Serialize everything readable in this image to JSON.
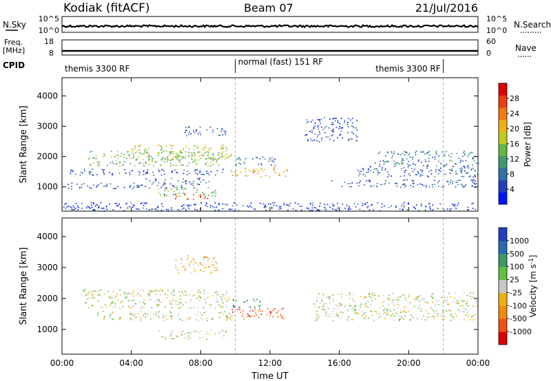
{
  "header": {
    "station": "Kodiak (fitACF)",
    "beam": "Beam 07",
    "date": "21/Jul/2016"
  },
  "top_panels": {
    "nsky_label": "N.Sky",
    "nsky_ticks": [
      "10^5",
      "10^0"
    ],
    "nsearch_label": "N.Search",
    "nsearch_ticks": [
      "10^5",
      "10^0"
    ],
    "freq_label": "Freq.",
    "freq_unit": "[MHz]",
    "freq_ticks": [
      "18",
      "8"
    ],
    "nave_label": "Nave",
    "nave_ticks": [
      "60",
      "0"
    ],
    "cpid_label": "CPID",
    "cpid_segments": [
      {
        "name": "themis 3300 RF",
        "start_h": 0,
        "end_h": 10
      },
      {
        "name": "normal (fast) 151 RF",
        "start_h": 10,
        "end_h": 22
      },
      {
        "name": "themis 3300 RF",
        "start_h": 22,
        "end_h": 24
      }
    ]
  },
  "chart_data": [
    {
      "type": "heatmap",
      "name": "power",
      "xlabel": "Time UT",
      "ylabel": "Slant Range [km]",
      "xlim": [
        0,
        24
      ],
      "ylim": [
        200,
        4600
      ],
      "x_ticks": [
        "00:00",
        "04:00",
        "08:00",
        "12:00",
        "16:00",
        "20:00",
        "00:00"
      ],
      "y_ticks": [
        "1000",
        "2000",
        "3000",
        "4000"
      ],
      "colorbar": {
        "label": "Power [dB]",
        "ticks": [
          "4",
          "8",
          "12",
          "16",
          "20",
          "24",
          "28"
        ],
        "range": [
          0,
          32
        ],
        "colors": [
          "#0014ff",
          "#2040c0",
          "#3070a8",
          "#3d9a70",
          "#61b840",
          "#c4c820",
          "#f0b010",
          "#f07a10",
          "#f03c10",
          "#e00000"
        ]
      },
      "echo_bands": [
        {
          "t0": 0.3,
          "t1": 9.6,
          "r0": 1400,
          "r1": 1600,
          "level": 5
        },
        {
          "t0": 1.5,
          "t1": 9.5,
          "r0": 1700,
          "r1": 2200,
          "level": 14
        },
        {
          "t0": 4.0,
          "t1": 9.8,
          "r0": 1900,
          "r1": 2400,
          "level": 17
        },
        {
          "t0": 5.5,
          "t1": 9.0,
          "r0": 700,
          "r1": 1000,
          "level": 14
        },
        {
          "t0": 6.5,
          "t1": 8.5,
          "r0": 600,
          "r1": 780,
          "level": 28
        },
        {
          "t0": 0.2,
          "t1": 8.0,
          "r0": 950,
          "r1": 1150,
          "level": 6
        },
        {
          "t0": 4.5,
          "t1": 8.5,
          "r0": 1150,
          "r1": 1300,
          "level": 7
        },
        {
          "t0": 9.7,
          "t1": 13.0,
          "r0": 1350,
          "r1": 1650,
          "level": 22
        },
        {
          "t0": 10.0,
          "t1": 12.3,
          "r0": 1700,
          "r1": 2000,
          "level": 8
        },
        {
          "t0": 7.0,
          "t1": 9.5,
          "r0": 2700,
          "r1": 3000,
          "level": 6
        },
        {
          "t0": 15.5,
          "t1": 24.0,
          "r0": 1000,
          "r1": 1250,
          "level": 6
        },
        {
          "t0": 17.0,
          "t1": 24.0,
          "r0": 1350,
          "r1": 1700,
          "level": 6
        },
        {
          "t0": 18.0,
          "t1": 24.0,
          "r0": 1700,
          "r1": 2200,
          "level": 9
        },
        {
          "t0": 14.0,
          "t1": 17.0,
          "r0": 2500,
          "r1": 3300,
          "level": 5
        },
        {
          "t0": 0.0,
          "t1": 24.0,
          "r0": 220,
          "r1": 500,
          "level": 4
        }
      ]
    },
    {
      "type": "heatmap",
      "name": "velocity",
      "xlabel": "Time UT",
      "ylabel": "Slant Range [km]",
      "xlim": [
        0,
        24
      ],
      "ylim": [
        200,
        4600
      ],
      "x_ticks": [
        "00:00",
        "04:00",
        "08:00",
        "12:00",
        "16:00",
        "20:00",
        "00:00"
      ],
      "y_ticks": [
        "1000",
        "2000",
        "3000",
        "4000"
      ],
      "colorbar": {
        "label": "Velocity [m s",
        "label_sup": "-1",
        "label_end": "]",
        "ticks": [
          "1000",
          "500",
          "100",
          "25",
          "-25",
          "-100",
          "-500",
          "-1000"
        ],
        "colors": [
          "#2040c0",
          "#2a6ab0",
          "#3a9a60",
          "#60c040",
          "#c8c8c8",
          "#f0b010",
          "#f08a10",
          "#f05010",
          "#e00000"
        ]
      },
      "echo_bands": [
        {
          "t0": 1.0,
          "t1": 9.8,
          "r0": 1700,
          "r1": 2300,
          "level": 4
        },
        {
          "t0": 2.0,
          "t1": 9.8,
          "r0": 1300,
          "r1": 1600,
          "level": 4
        },
        {
          "t0": 5.5,
          "t1": 9.5,
          "r0": 700,
          "r1": 1000,
          "level": 4
        },
        {
          "t0": 9.7,
          "t1": 12.8,
          "r0": 1350,
          "r1": 1700,
          "level": 7
        },
        {
          "t0": 9.8,
          "t1": 11.5,
          "r0": 1700,
          "r1": 2000,
          "level": 2
        },
        {
          "t0": 14.5,
          "t1": 24.0,
          "r0": 1300,
          "r1": 2200,
          "level": 4
        },
        {
          "t0": 6.5,
          "t1": 9.0,
          "r0": 2800,
          "r1": 3400,
          "level": 5
        }
      ]
    }
  ]
}
